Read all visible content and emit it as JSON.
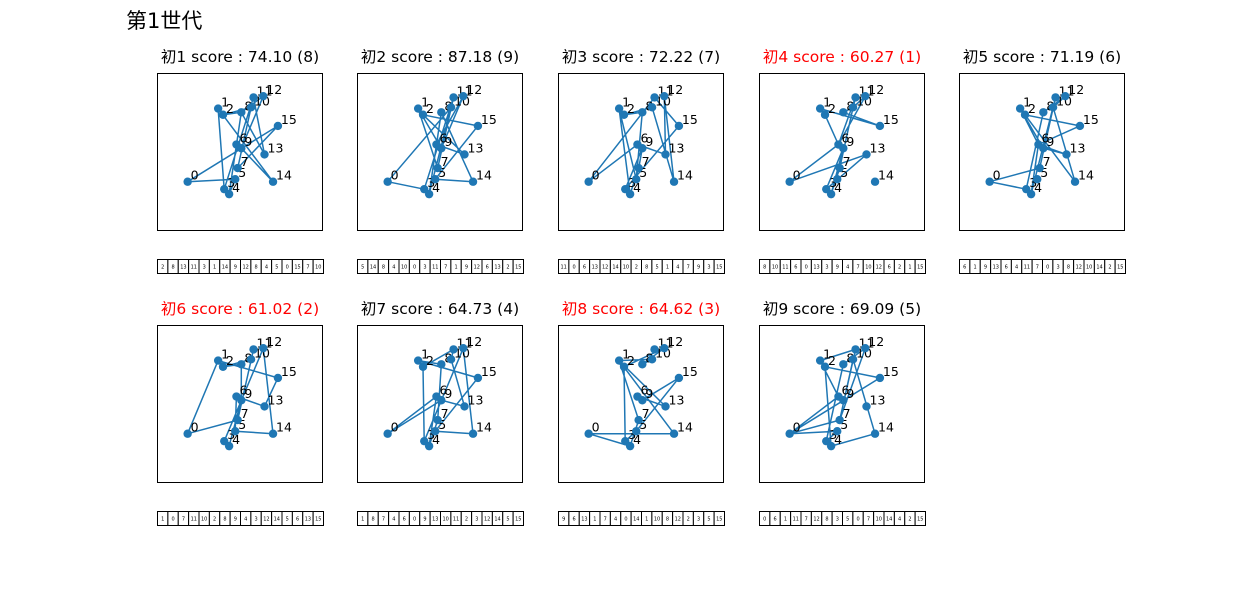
{
  "figure": {
    "title": "第1世代"
  },
  "chart_data": {
    "type": "scatter",
    "title": "第1世代",
    "xlim": [
      0,
      1
    ],
    "ylim": [
      0,
      1
    ],
    "grid": false,
    "line_color": "#1f77b4",
    "highlight_color": "#ff0000",
    "cities": [
      {
        "id": 0,
        "x": 0.12,
        "y": 0.22
      },
      {
        "id": 1,
        "x": 0.37,
        "y": 0.81
      },
      {
        "id": 2,
        "x": 0.41,
        "y": 0.76
      },
      {
        "id": 3,
        "x": 0.42,
        "y": 0.16
      },
      {
        "id": 4,
        "x": 0.46,
        "y": 0.12
      },
      {
        "id": 5,
        "x": 0.51,
        "y": 0.24
      },
      {
        "id": 6,
        "x": 0.52,
        "y": 0.52
      },
      {
        "id": 7,
        "x": 0.53,
        "y": 0.33
      },
      {
        "id": 8,
        "x": 0.56,
        "y": 0.78
      },
      {
        "id": 9,
        "x": 0.56,
        "y": 0.49
      },
      {
        "id": 10,
        "x": 0.64,
        "y": 0.82
      },
      {
        "id": 11,
        "x": 0.66,
        "y": 0.9
      },
      {
        "id": 12,
        "x": 0.74,
        "y": 0.91
      },
      {
        "id": 13,
        "x": 0.75,
        "y": 0.44
      },
      {
        "id": 14,
        "x": 0.82,
        "y": 0.22
      },
      {
        "id": 15,
        "x": 0.86,
        "y": 0.67
      }
    ],
    "individuals": [
      {
        "title": "初1 score : 74.10 (8)",
        "highlight": false,
        "route": [
          2,
          8,
          13,
          11,
          3,
          1,
          14,
          9,
          12,
          8,
          4,
          5,
          0,
          15,
          7,
          10
        ]
      },
      {
        "title": "初2 score : 87.18 (9)",
        "highlight": false,
        "route": [
          5,
          14,
          8,
          4,
          10,
          0,
          3,
          11,
          7,
          1,
          9,
          12,
          6,
          13,
          2,
          15
        ]
      },
      {
        "title": "初3 score : 72.22 (7)",
        "highlight": false,
        "route": [
          11,
          0,
          6,
          13,
          12,
          14,
          10,
          2,
          8,
          5,
          1,
          4,
          7,
          9,
          3,
          15
        ]
      },
      {
        "title": "初4 score : 60.27 (1)",
        "highlight": true,
        "route": [
          8,
          10,
          11,
          6,
          0,
          13,
          3,
          9,
          4,
          7,
          10,
          12,
          6,
          2,
          1,
          15
        ]
      },
      {
        "title": "初5 score : 71.19 (6)",
        "highlight": false,
        "route": [
          6,
          1,
          9,
          13,
          6,
          4,
          11,
          7,
          0,
          3,
          8,
          12,
          10,
          14,
          2,
          15
        ]
      },
      {
        "title": "初6 score : 61.02 (2)",
        "highlight": true,
        "route": [
          1,
          0,
          7,
          11,
          10,
          2,
          8,
          9,
          4,
          3,
          12,
          14,
          5,
          6,
          13,
          15
        ]
      },
      {
        "title": "初7 score : 64.73 (4)",
        "highlight": false,
        "route": [
          1,
          8,
          7,
          4,
          6,
          0,
          9,
          13,
          10,
          11,
          2,
          3,
          12,
          14,
          5,
          15
        ]
      },
      {
        "title": "初8 score : 64.62 (3)",
        "highlight": true,
        "route": [
          9,
          6,
          13,
          1,
          7,
          4,
          0,
          14,
          1,
          10,
          8,
          12,
          2,
          3,
          5,
          15
        ]
      },
      {
        "title": "初9 score : 69.09 (5)",
        "highlight": false,
        "route": [
          0,
          6,
          1,
          11,
          7,
          12,
          8,
          3,
          5,
          0,
          7,
          10,
          14,
          4,
          2,
          15
        ]
      }
    ]
  }
}
